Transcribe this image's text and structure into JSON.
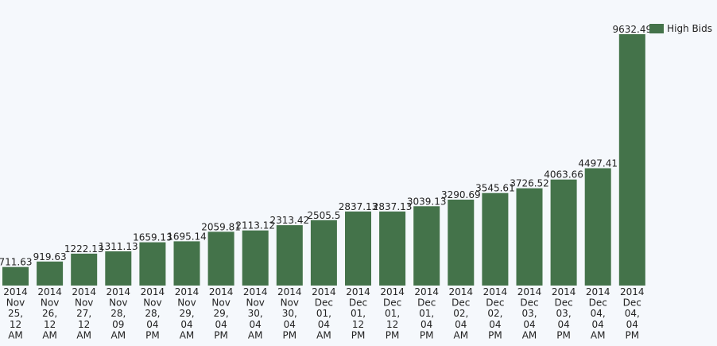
{
  "chart_data": {
    "type": "bar",
    "categories": [
      "2014 Nov 25, 12 AM",
      "2014 Nov 26, 12 AM",
      "2014 Nov 27, 12 AM",
      "2014 Nov 28, 09 AM",
      "2014 Nov 28, 04 PM",
      "2014 Nov 29, 04 AM",
      "2014 Nov 29, 04 PM",
      "2014 Nov 30, 04 AM",
      "2014 Nov 30, 04 PM",
      "2014 Dec 01, 04 AM",
      "2014 Dec 01, 12 PM",
      "2014 Dec 01, 12 PM",
      "2014 Dec 01, 04 PM",
      "2014 Dec 02, 04 AM",
      "2014 Dec 02, 04 PM",
      "2014 Dec 03, 04 AM",
      "2014 Dec 03, 04 PM",
      "2014 Dec 04, 04 AM",
      "2014 Dec 04, 04 PM"
    ],
    "category_lines": [
      [
        "2014",
        "Nov",
        "25,",
        "12",
        "AM"
      ],
      [
        "2014",
        "Nov",
        "26,",
        "12",
        "AM"
      ],
      [
        "2014",
        "Nov",
        "27,",
        "12",
        "AM"
      ],
      [
        "2014",
        "Nov",
        "28,",
        "09",
        "AM"
      ],
      [
        "2014",
        "Nov",
        "28,",
        "04",
        "PM"
      ],
      [
        "2014",
        "Nov",
        "29,",
        "04",
        "AM"
      ],
      [
        "2014",
        "Nov",
        "29,",
        "04",
        "PM"
      ],
      [
        "2014",
        "Nov",
        "30,",
        "04",
        "AM"
      ],
      [
        "2014",
        "Nov",
        "30,",
        "04",
        "PM"
      ],
      [
        "2014",
        "Dec",
        "01,",
        "04",
        "AM"
      ],
      [
        "2014",
        "Dec",
        "01,",
        "12",
        "PM"
      ],
      [
        "2014",
        "Dec",
        "01,",
        "12",
        "PM"
      ],
      [
        "2014",
        "Dec",
        "01,",
        "04",
        "PM"
      ],
      [
        "2014",
        "Dec",
        "02,",
        "04",
        "AM"
      ],
      [
        "2014",
        "Dec",
        "02,",
        "04",
        "PM"
      ],
      [
        "2014",
        "Dec",
        "03,",
        "04",
        "AM"
      ],
      [
        "2014",
        "Dec",
        "03,",
        "04",
        "PM"
      ],
      [
        "2014",
        "Dec",
        "04,",
        "04",
        "AM"
      ],
      [
        "2014",
        "Dec",
        "04,",
        "04",
        "PM"
      ]
    ],
    "series": [
      {
        "name": "High Bids",
        "color": "#44734a",
        "values": [
          711.63,
          919.63,
          1222.13,
          1311.13,
          1659.13,
          1695.14,
          2059.81,
          2113.12,
          2313.42,
          2505.5,
          2837.13,
          2837.13,
          3039.13,
          3290.69,
          3545.61,
          3726.52,
          4063.66,
          4497.41,
          9632.49
        ],
        "labels": [
          "711.63",
          "919.63",
          "1222.13",
          "1311.13",
          "1659.13",
          "1695.14",
          "2059.81",
          "2113.12",
          "2313.42",
          "2505.5",
          "2837.13",
          "2837.13",
          "3039.13",
          "3290.69",
          "3545.61",
          "3726.52",
          "4063.66",
          "4497.41",
          "9632.49"
        ]
      }
    ],
    "title": "",
    "xlabel": "",
    "ylabel": "",
    "ylim": [
      0,
      9632.49
    ],
    "grid": false,
    "legend_position": "top-right",
    "background": "#f5f8fc"
  }
}
